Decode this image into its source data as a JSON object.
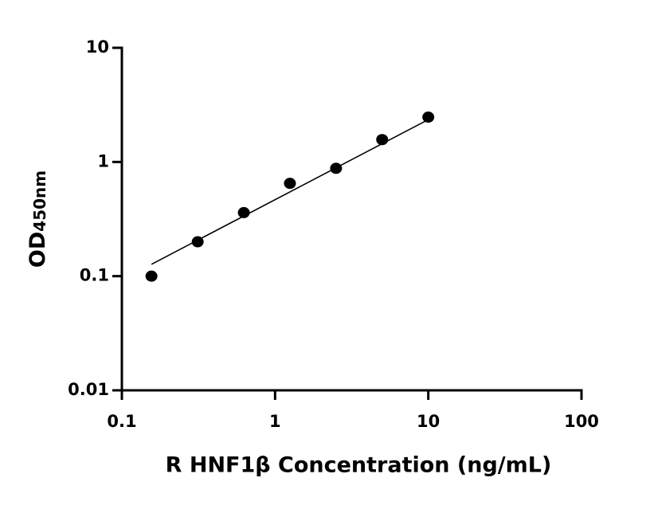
{
  "chart_data": {
    "type": "scatter",
    "x_label": "R HNF1β Concentration (ng/mL)",
    "y_label": "OD",
    "y_label_subscript": "450nm",
    "x": [
      0.156,
      0.3125,
      0.625,
      1.25,
      2.5,
      5,
      10
    ],
    "values": [
      0.1,
      0.2,
      0.36,
      0.65,
      0.88,
      1.57,
      2.47
    ],
    "color": "#000000",
    "fit": {
      "x": [
        0.156,
        10
      ],
      "values": [
        0.127,
        2.35
      ]
    },
    "xlim": [
      0.1,
      100
    ],
    "ylim": [
      0.01,
      10
    ],
    "xticks": [
      0.1,
      1,
      10,
      100
    ],
    "yticks": [
      0.01,
      0.1,
      1,
      10
    ],
    "xscale": "log",
    "yscale": "log"
  }
}
